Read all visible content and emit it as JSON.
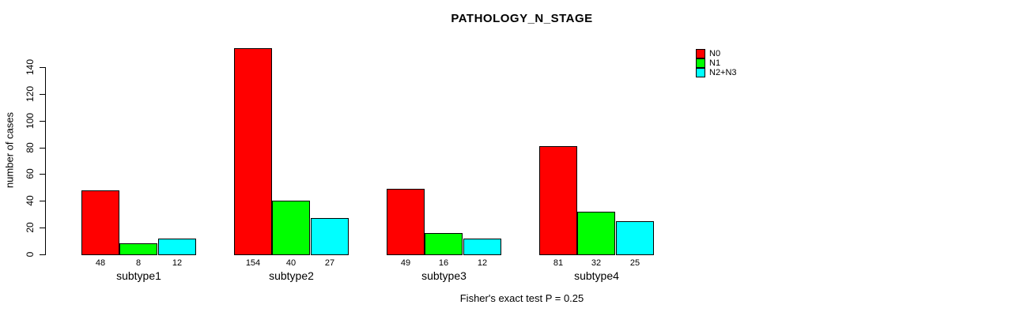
{
  "title": "PATHOLOGY_N_STAGE",
  "ylabel": "number of cases",
  "footer": "Fisher's exact test P = 0.25",
  "chart_data": {
    "type": "bar",
    "grouped": true,
    "title": "PATHOLOGY_N_STAGE",
    "xlabel": "",
    "ylabel": "number of cases",
    "categories": [
      "subtype1",
      "subtype2",
      "subtype3",
      "subtype4"
    ],
    "series": [
      {
        "name": "N0",
        "color": "#ff0000",
        "values": [
          48,
          154,
          49,
          81
        ]
      },
      {
        "name": "N1",
        "color": "#00ff00",
        "values": [
          8,
          40,
          16,
          32
        ]
      },
      {
        "name": "N2+N3",
        "color": "#00ffff",
        "values": [
          12,
          27,
          12,
          25
        ]
      }
    ],
    "value_labels_shown": true,
    "yticks": [
      0,
      20,
      40,
      60,
      80,
      100,
      120,
      140
    ],
    "ylim": [
      0,
      154
    ],
    "grid": false,
    "legend_position": "top-right",
    "annotation": "Fisher's exact test P = 0.25"
  }
}
